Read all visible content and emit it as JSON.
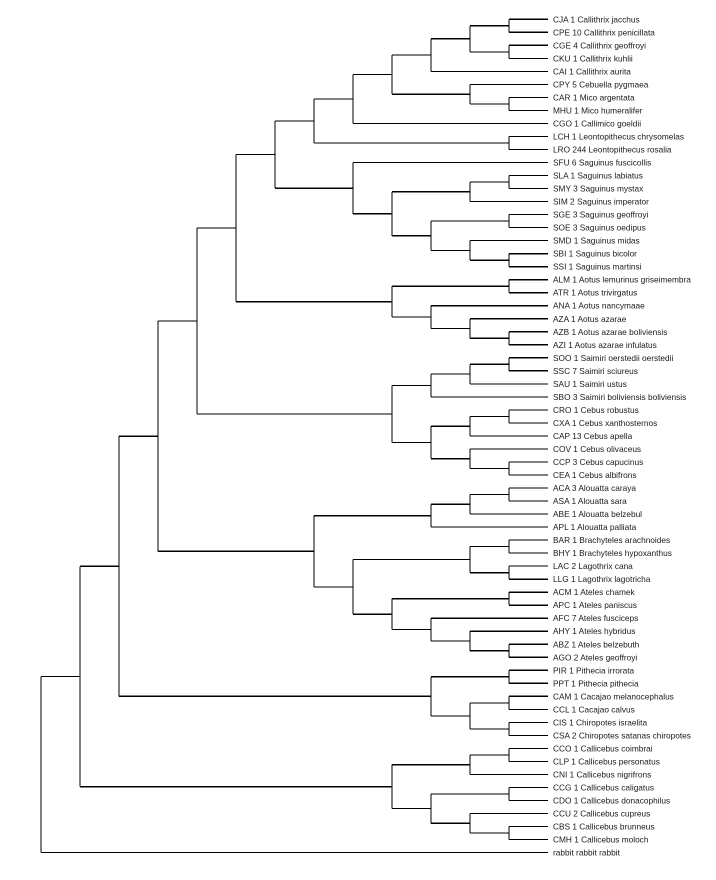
{
  "diagram": {
    "type": "cladogram",
    "orientation": "left-to-right",
    "line_color": "#000000",
    "leaves": [
      "CJA 1 Callithrix jacchus",
      "CPE 10 Callithrix penicillata",
      "CGE 4 Callithrix geoffroyi",
      "CKU 1 Callithrix kuhlii",
      "CAI 1 Callithrix aurita",
      "CPY 5 Cebuella pygmaea",
      "CAR 1 Mico argentata",
      "MHU 1 Mico humeralifer",
      "CGO 1 Callimico goeldii",
      "LCH 1 Leontopithecus chrysomelas",
      "LRO 244 Leontopithecus rosalia",
      "SFU 6 Saguinus fuscicollis",
      "SLA 1 Saguinus labiatus",
      "SMY 3 Saguinus mystax",
      "SIM 2 Saguinus imperator",
      "SGE 3 Saguinus geoffroyi",
      "SOE 3 Saguinus oedipus",
      "SMD 1 Saguinus midas",
      "SBI 1 Saguinus bicolor",
      "SSI 1 Saguinus martinsi",
      "ALM 1 Aotus lemurinus griseimembra",
      "ATR 1 Aotus trivirgatus",
      "ANA 1 Aotus nancymaae",
      "AZA 1 Aotus azarae",
      "AZB 1 Aotus azarae boliviensis",
      "AZI 1 Aotus azarae infulatus",
      "SOO 1 Saimiri oerstedii oerstedii",
      "SSC 7 Saimiri sciureus",
      "SAU 1 Saimiri ustus",
      "SBO 3 Saimiri boliviensis boliviensis",
      "CRO 1 Cebus robustus",
      "CXA 1 Cebus xanthosternos",
      "CAP 13 Cebus apella",
      "COV 1 Cebus olivaceus",
      "CCP 3 Cebus capucinus",
      "CEA 1 Cebus albifrons",
      "ACA 3 Alouatta caraya",
      "ASA 1 Alouatta sara",
      "ABE 1 Alouatta belzebul",
      "APL 1 Alouatta palliata",
      "BAR 1 Brachyteles arachnoides",
      "BHY 1 Brachyteles hypoxanthus",
      "LAC 2 Lagothrix cana",
      "LLG 1 Lagothrix lagotricha",
      "ACM 1 Ateles chamek",
      "APC 1 Ateles paniscus",
      "AFC 7 Ateles fusciceps",
      "AHY 1 Ateles hybridus",
      "ABZ 1 Ateles belzebuth",
      "AGO 2 Ateles geoffroyi",
      "PIR 1 Pithecia irrorata",
      "PPT 1 Pithecia pithecia",
      "CAM 1 Cacajao melanocephalus",
      "CCL 1 Cacajao calvus",
      "CIS 1 Chiropotes israelita",
      "CSA 2 Chiropotes satanas chiropotes",
      "CCO 1 Callicebus coimbrai",
      "CLP 1 Callicebus personatus",
      "CNI 1 Callicebus nigrifrons",
      "CCG 1 Callicebus caligatus",
      "CDO 1 Callicebus donacophilus",
      "CCU 2 Callicebus cupreus",
      "CBS 1 Callicebus brunneus",
      "CMH 1 Callicebus moloch",
      "rabbit rabbit rabbit"
    ],
    "tree": [
      [
        [
          [
            [
              [
                [
                  [
                    [
                      [
                        [
                          [
                            0,
                            1
                          ],
                          [
                            2,
                            3
                          ]
                        ],
                        4
                      ],
                      [
                        5,
                        [
                          6,
                          7
                        ]
                      ]
                    ],
                    8
                  ],
                  [
                    9,
                    10
                  ]
                ],
                [
                  11,
                  [
                    [
                      [
                        12,
                        13
                      ],
                      14
                    ],
                    [
                      [
                        15,
                        16
                      ],
                      [
                        17,
                        [
                          18,
                          19
                        ]
                      ]
                    ]
                  ]
                ]
              ],
              [
                [
                  20,
                  21
                ],
                [
                  22,
                  [
                    23,
                    [
                      24,
                      25
                    ]
                  ]
                ]
              ]
            ],
            [
              [
                [
                  [
                    26,
                    27
                  ],
                  28
                ],
                29
              ],
              [
                [
                  [
                    30,
                    31
                  ],
                  32
                ],
                [
                  33,
                  [
                    34,
                    35
                  ]
                ]
              ]
            ]
          ],
          [
            [
              [
                [
                  36,
                  37
                ],
                38
              ],
              39
            ],
            [
              [
                [
                  40,
                  41
                ],
                [
                  42,
                  43
                ]
              ],
              [
                [
                  44,
                  45
                ],
                [
                  46,
                  [
                    47,
                    [
                      48,
                      49
                    ]
                  ]
                ]
              ]
            ]
          ]
        ],
        [
          [
            50,
            51
          ],
          [
            [
              52,
              53
            ],
            [
              54,
              55
            ]
          ]
        ]
      ],
      [
        [
          [
            56,
            57
          ],
          58
        ],
        [
          [
            59,
            60
          ],
          [
            61,
            [
              62,
              63
            ]
          ]
        ]
      ]
    ],
    "outgroup": 64
  }
}
